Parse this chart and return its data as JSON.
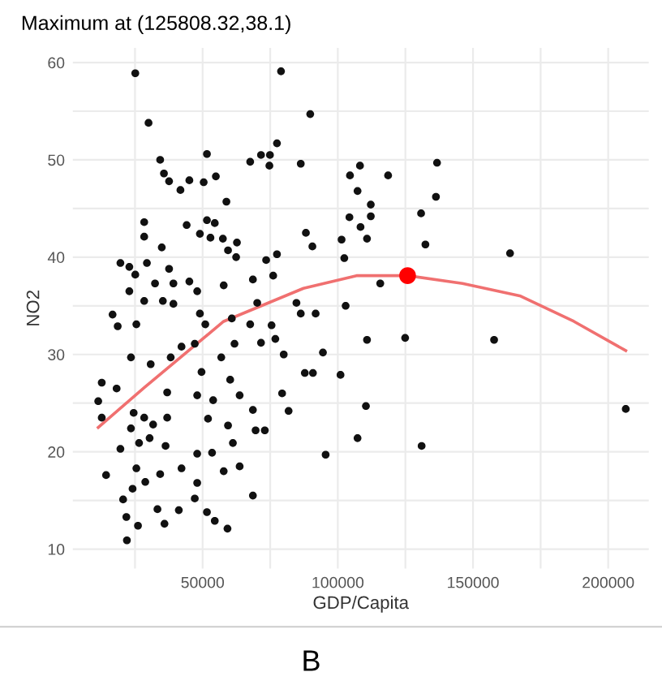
{
  "chart_data": {
    "type": "scatter",
    "title": "Maximum at (125808.32,38.1)",
    "xlabel": "GDP/Capita",
    "ylabel": "NO2",
    "annotations": [
      "B"
    ],
    "xlim": [
      2000,
      215000
    ],
    "ylim": [
      8,
      61.5
    ],
    "xticks": [
      {
        "value": 25000,
        "label": null
      },
      50000,
      {
        "value": 75000,
        "label": null
      },
      100000,
      {
        "value": 125000,
        "label": null
      },
      150000,
      {
        "value": 175000,
        "label": null
      },
      200000
    ],
    "yticks": [
      10,
      {
        "value": 15,
        "label": null
      },
      20,
      {
        "value": 25,
        "label": null
      },
      30,
      {
        "value": 35,
        "label": null
      },
      40,
      {
        "value": 45,
        "label": null
      },
      50,
      {
        "value": 55,
        "label": null
      },
      60
    ],
    "grid": true,
    "legend": false,
    "marker": "circle",
    "series": [
      {
        "color": "#111111",
        "x": [
          25100,
          79000,
          89800,
          30000,
          77500,
          51600,
          34300,
          67600,
          71600,
          74900,
          74700,
          86300,
          108200,
          136700,
          118600,
          104500,
          35700,
          37600,
          41800,
          45100,
          50400,
          54900,
          58800,
          107300,
          136300,
          112200,
          112200,
          130800,
          104300,
          44100,
          51600,
          54500,
          49000,
          52900,
          57500,
          62700,
          88200,
          90600,
          108400,
          110800,
          101400,
          102400,
          132400,
          163700,
          28400,
          28400,
          34900,
          59400,
          62400,
          77500,
          73500,
          68600,
          76100,
          19600,
          22900,
          29400,
          37600,
          25100,
          32400,
          39200,
          45100,
          48000,
          57800,
          16700,
          18600,
          22900,
          28400,
          25500,
          35300,
          39200,
          49000,
          51000,
          60800,
          67600,
          70200,
          84700,
          86300,
          91800,
          102900,
          115700,
          75500,
          76900,
          71600,
          110800,
          124900,
          157800,
          12700,
          11400,
          12700,
          18200,
          23500,
          30800,
          38200,
          42200,
          47100,
          61800,
          56900,
          80000,
          94500,
          49600,
          60200,
          36900,
          48000,
          53900,
          63700,
          68600,
          79400,
          81800,
          87800,
          90800,
          101000,
          110400,
          206500,
          24500,
          28400,
          31700,
          36900,
          23500,
          30400,
          69600,
          73000,
          59400,
          52000,
          19600,
          26500,
          36300,
          61200,
          107300,
          131000,
          95500,
          48000,
          53500,
          14300,
          25500,
          28800,
          34300,
          42200,
          57800,
          63700,
          48000,
          24100,
          68600,
          20600,
          47100,
          21800,
          33300,
          41200,
          51600,
          26100,
          35900,
          54500,
          59200,
          22000
        ],
        "values": [
          58.9,
          59.1,
          54.7,
          53.8,
          51.7,
          50.6,
          50.0,
          49.8,
          50.5,
          50.5,
          49.4,
          49.6,
          49.4,
          49.7,
          48.4,
          48.4,
          48.6,
          47.8,
          46.9,
          47.9,
          47.7,
          48.3,
          45.7,
          46.8,
          46.2,
          45.4,
          44.2,
          44.5,
          44.1,
          43.3,
          43.8,
          43.5,
          42.4,
          42.0,
          41.9,
          41.5,
          42.5,
          41.1,
          43.1,
          41.9,
          41.8,
          39.9,
          41.3,
          40.4,
          43.6,
          42.1,
          41.0,
          40.7,
          40.0,
          40.3,
          39.7,
          37.7,
          38.1,
          39.4,
          39.0,
          39.4,
          38.8,
          38.2,
          37.3,
          37.3,
          37.5,
          36.5,
          37.1,
          34.1,
          32.9,
          36.5,
          35.5,
          33.1,
          35.5,
          35.2,
          34.2,
          33.1,
          33.7,
          33.1,
          35.3,
          35.3,
          34.2,
          34.2,
          35.0,
          37.3,
          33.0,
          31.6,
          31.2,
          31.5,
          31.7,
          31.5,
          27.1,
          25.2,
          23.5,
          26.5,
          29.7,
          29.0,
          29.7,
          30.8,
          31.1,
          31.1,
          29.7,
          30.0,
          30.2,
          28.2,
          27.4,
          26.1,
          25.8,
          25.3,
          25.8,
          24.3,
          26.0,
          24.2,
          28.1,
          28.1,
          27.9,
          24.7,
          24.4,
          24.0,
          23.5,
          22.8,
          23.5,
          22.4,
          21.4,
          22.2,
          22.2,
          22.7,
          23.4,
          20.3,
          20.9,
          20.6,
          20.9,
          21.4,
          20.6,
          19.7,
          19.8,
          19.9,
          17.6,
          18.3,
          16.9,
          17.7,
          18.3,
          18.0,
          18.5,
          16.8,
          16.2,
          15.5,
          15.1,
          15.2,
          13.3,
          14.1,
          14.0,
          13.8,
          12.4,
          12.6,
          12.9,
          12.1,
          10.9
        ]
      },
      {
        "type": "line",
        "color": "#f07070",
        "marker": "none",
        "line_style": "solid",
        "x": [
          11400,
          28400,
          57800,
          87300,
          106900,
          125800,
          146100,
          167600,
          187300,
          206500
        ],
        "values": [
          22.5,
          26.6,
          33.4,
          36.8,
          38.1,
          38.1,
          37.3,
          36.0,
          33.4,
          30.4
        ]
      },
      {
        "color": "#ff0000",
        "x": [
          125808.32
        ],
        "values": [
          38.1
        ]
      }
    ]
  }
}
